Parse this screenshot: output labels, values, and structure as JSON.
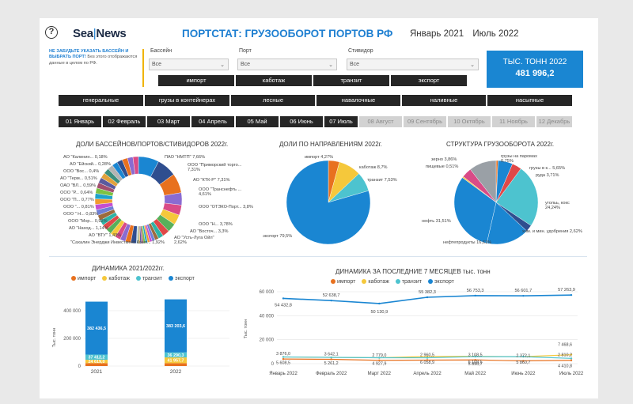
{
  "header": {
    "help_glyph": "?",
    "logo_left": "Sea",
    "logo_sep": "|",
    "logo_right": "News",
    "title": "ПОРТСТАТ: ГРУЗООБОРОТ ПОРТОВ РФ",
    "period_from": "Январь 2021",
    "period_to": "Июль 2022"
  },
  "note": {
    "highlight": "НЕ ЗАБУДЬТЕ УКАЗАТЬ БАССЕЙН И ВЫБРАТЬ ПОРТ!",
    "text": "Без этого отображаются данные в целом по РФ."
  },
  "filters": [
    {
      "label": "Бассейн",
      "value": "Все"
    },
    {
      "label": "Порт",
      "value": "Все"
    },
    {
      "label": "Стивидор",
      "value": "Все"
    }
  ],
  "kpi": {
    "title": "ТЫС. ТОНН 2022",
    "value": "481 996,2"
  },
  "direction_buttons": [
    "импорт",
    "каботаж",
    "транзит",
    "экспорт"
  ],
  "cargo_buttons": [
    "генеральные",
    "грузы в контейнерах",
    "лесные",
    "навалочные",
    "наливные",
    "насыпные"
  ],
  "month_buttons": [
    {
      "label": "01 Январь",
      "active": true
    },
    {
      "label": "02 Февраль",
      "active": true
    },
    {
      "label": "03 Март",
      "active": true
    },
    {
      "label": "04 Апрель",
      "active": true
    },
    {
      "label": "05 Май",
      "active": true
    },
    {
      "label": "06 Июнь",
      "active": true
    },
    {
      "label": "07 Июль",
      "active": true
    },
    {
      "label": "08 Август",
      "active": false
    },
    {
      "label": "09 Сентябрь",
      "active": false
    },
    {
      "label": "10 Октябрь",
      "active": false
    },
    {
      "label": "11 Ноябрь",
      "active": false
    },
    {
      "label": "12 Декабрь",
      "active": false
    }
  ],
  "colors": {
    "import": "#e8711f",
    "cabotage": "#f5c83b",
    "transit": "#4dc3cf",
    "export": "#1a86d2",
    "accent": "#1e7fd1"
  },
  "chart_data": [
    {
      "type": "pie",
      "title": "ДОЛИ БАССЕЙНОВ/ПОРТОВ/СТИВИДОРОВ 2022г.",
      "variant": "donut",
      "labels": [
        "ПАО \"НМТП\" 7,66%",
        "ООО \"Приморский торго... 7,31%",
        "АО \"КТК-Р\" 7,31%",
        "ООО \"Транснефть ... 4,61%",
        "ООО \"ОТЭКО-Порт... 3,8%",
        "ООО \"Н... 3,78%",
        "АО \"Восточ... 3,3%",
        "АО \"Усть-Луга Ойл\" 2,62%",
        "\"Сахалин Энерджи Инвестмент Комп... 1,92%",
        "АО \"ВТУ\" 1,43%",
        "АО \"Наход... 1,14%",
        "ООО \"Мор... 0,92%",
        "ООО \" Н... 0,83%",
        "ООО \"... 0,81%",
        "ООО \"П... 0,77%",
        "ООО \"Р... 0,64%",
        "ОАО \"ВЛ... 0,59%",
        "АО \"Терм... 0,51%",
        "ООО \"Вос... 0,4%",
        "АО \"Ейский... 0,28%",
        "АО \"Калинин... 0,18%"
      ],
      "values": [
        7.66,
        7.31,
        7.31,
        4.61,
        3.8,
        3.78,
        3.3,
        2.62,
        1.92,
        1.43,
        1.14,
        0.92,
        0.83,
        0.81,
        0.77,
        0.64,
        0.59,
        0.51,
        0.4,
        0.28,
        0.18
      ]
    },
    {
      "type": "pie",
      "title": "ДОЛИ ПО НАПРАВЛЕНИЯМ 2022г.",
      "labels": [
        "импорт 4,27%",
        "каботаж 8,7%",
        "транзит 7,53%",
        "экспорт 79,5%"
      ],
      "values": [
        4.27,
        8.7,
        7.53,
        79.5
      ]
    },
    {
      "type": "pie",
      "title": "СТРУКТУРА ГРУЗООБОРОТА 2022г.",
      "labels": [
        "нефть 31,51%",
        "угольь, кокс 24,24%",
        "нефтепродукты 16,61%",
        "хим. и мин. удобрения 2,62%",
        "грузы в к... 5,65%",
        "руда 3,71%",
        "зерно 3,86%",
        "пищевые 0,51%",
        "грузы на паромах 0,75%"
      ],
      "values": [
        31.51,
        24.24,
        16.61,
        2.62,
        5.65,
        3.71,
        3.86,
        0.51,
        0.75
      ]
    },
    {
      "type": "bar",
      "title": "ДИНАМИКА 2021/2022гг.",
      "ylabel": "Тыс. тонн",
      "categories": [
        "2021",
        "2022"
      ],
      "y_ticks": [
        "0",
        "200 000",
        "400 000"
      ],
      "ylim": [
        0,
        480000
      ],
      "series": [
        {
          "name": "импорт",
          "values": [
            21000,
            20600
          ],
          "labels": [
            "",
            ""
          ]
        },
        {
          "name": "каботаж",
          "values": [
            24620,
            41958
          ],
          "labels": [
            "24 619,0",
            "41 957,7"
          ]
        },
        {
          "name": "транзит",
          "values": [
            37412,
            36290
          ],
          "labels": [
            "37 412,2",
            "36 290,3"
          ]
        },
        {
          "name": "экспорт",
          "values": [
            382436.5,
            383203.6
          ],
          "labels": [
            "382 436,5",
            "383 203,6"
          ]
        }
      ]
    },
    {
      "type": "line",
      "title": "ДИНАМИКА ЗА ПОСЛЕДНИЕ 7 МЕСЯЦЕВ тыс. тонн",
      "ylabel": "Тыс. тонн",
      "categories": [
        "Январь 2022",
        "Февраль 2022",
        "Март 2022",
        "Апрель 2022",
        "Май 2022",
        "Июнь 2022",
        "Июль 2022"
      ],
      "y_ticks": [
        "0",
        "20 000",
        "40 000",
        "60 000"
      ],
      "ylim": [
        0,
        60000
      ],
      "series": [
        {
          "name": "импорт",
          "values": [
            3876,
            3642.1,
            2779,
            2960.5,
            3108.5,
            2372.1,
            2810.2
          ],
          "labels": [
            "3 876,0",
            "3 642,1",
            "2 779,0",
            "2 960,5",
            "3 108,5",
            "2 372,1",
            "2 810,2"
          ]
        },
        {
          "name": "каботаж",
          "values": [
            5608.5,
            5261.2,
            4927.9,
            6058.9,
            6108.5,
            5860.7,
            7468.6
          ],
          "labels": [
            "5 608,5",
            "5 261,2",
            "4 927,9",
            "6 058,9",
            "6 108,5",
            "5 860,7",
            "7 468,6"
          ]
        },
        {
          "name": "транзит",
          "values": [
            5608.5,
            5261.2,
            4927.9,
            4900,
            5890.7,
            5860.7,
            4410.8
          ],
          "labels": [
            "",
            "",
            "",
            "",
            "5 890,7",
            "",
            "4 410,8"
          ]
        },
        {
          "name": "экспорт",
          "values": [
            54432.8,
            52638.7,
            50130.9,
            55382.3,
            56753.3,
            56601.7,
            57263.9
          ],
          "labels": [
            "54 432,8",
            "52 638,7",
            "50 130,9",
            "55 382,3",
            "56 753,3",
            "56 601,7",
            "57 263,9"
          ]
        }
      ]
    }
  ]
}
